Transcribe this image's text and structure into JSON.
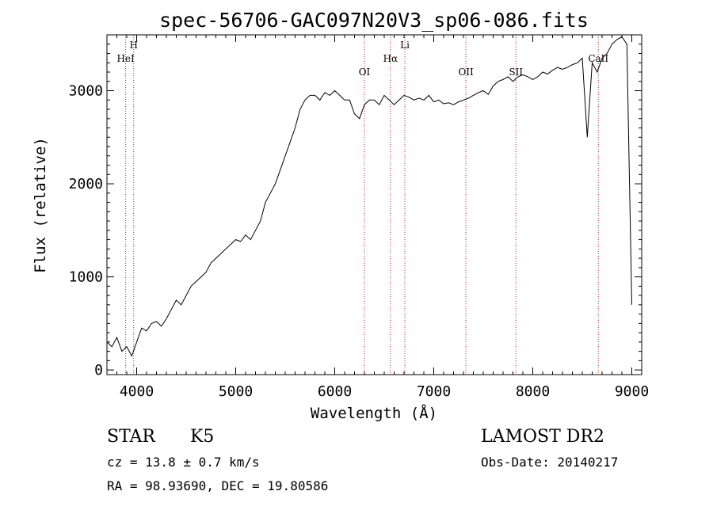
{
  "chart_data": {
    "type": "line",
    "title": "spec-56706-GAC097N20V3_sp06-086.fits",
    "xlabel": "Wavelength (Å)",
    "ylabel": "Flux (relative)",
    "xlim": [
      3700,
      9100
    ],
    "ylim": [
      -50,
      3600
    ],
    "x_ticks": [
      4000,
      5000,
      6000,
      7000,
      8000,
      9000
    ],
    "y_ticks": [
      0,
      1000,
      2000,
      3000
    ],
    "grid": false,
    "series": [
      {
        "x": [
          3700,
          3750,
          3800,
          3850,
          3900,
          3950,
          4000,
          4050,
          4100,
          4150,
          4200,
          4250,
          4300,
          4350,
          4400,
          4450,
          4500,
          4550,
          4600,
          4650,
          4700,
          4750,
          4800,
          4850,
          4900,
          4950,
          5000,
          5050,
          5100,
          5150,
          5200,
          5250,
          5300,
          5350,
          5400,
          5450,
          5500,
          5550,
          5600,
          5650,
          5700,
          5750,
          5800,
          5850,
          5900,
          5950,
          6000,
          6050,
          6100,
          6150,
          6200,
          6250,
          6300,
          6350,
          6400,
          6450,
          6500,
          6550,
          6600,
          6650,
          6700,
          6750,
          6800,
          6850,
          6900,
          6950,
          7000,
          7050,
          7100,
          7150,
          7200,
          7250,
          7300,
          7350,
          7400,
          7450,
          7500,
          7550,
          7600,
          7650,
          7700,
          7750,
          7800,
          7850,
          7900,
          7950,
          8000,
          8050,
          8100,
          8150,
          8200,
          8250,
          8300,
          8350,
          8400,
          8450,
          8500,
          8550,
          8600,
          8650,
          8700,
          8750,
          8800,
          8850,
          8900,
          8950,
          9000
        ],
        "y": [
          300,
          250,
          350,
          200,
          250,
          150,
          300,
          450,
          420,
          500,
          520,
          470,
          550,
          650,
          750,
          700,
          800,
          900,
          950,
          1000,
          1050,
          1150,
          1200,
          1250,
          1300,
          1350,
          1400,
          1380,
          1450,
          1400,
          1500,
          1600,
          1800,
          1900,
          2000,
          2150,
          2300,
          2450,
          2600,
          2800,
          2900,
          2950,
          2950,
          2900,
          2980,
          2950,
          3000,
          2950,
          2900,
          2900,
          2750,
          2700,
          2850,
          2900,
          2900,
          2850,
          2950,
          2900,
          2850,
          2900,
          2950,
          2930,
          2900,
          2920,
          2900,
          2950,
          2880,
          2900,
          2860,
          2870,
          2850,
          2880,
          2900,
          2920,
          2950,
          2980,
          3000,
          2960,
          3050,
          3100,
          3120,
          3150,
          3100,
          3150,
          3170,
          3150,
          3120,
          3150,
          3200,
          3180,
          3220,
          3250,
          3230,
          3250,
          3280,
          3300,
          3350,
          2500,
          3300,
          3200,
          3350,
          3400,
          3500,
          3550,
          3580,
          3500,
          700
        ]
      }
    ],
    "line_markers": [
      {
        "name": "HeI",
        "wavelength": 3889
      },
      {
        "name": "H",
        "wavelength": 3970
      },
      {
        "name": "OI",
        "wavelength": 6300
      },
      {
        "name": "Hα",
        "wavelength": 6563
      },
      {
        "name": "Li",
        "wavelength": 6708
      },
      {
        "name": "OII",
        "wavelength": 7325
      },
      {
        "name": "SII",
        "wavelength": 7830
      },
      {
        "name": "CaII",
        "wavelength": 8662
      }
    ],
    "marker_color": "#b22222"
  },
  "info": {
    "object_type": "STAR",
    "subclass": "K5",
    "survey": "LAMOST DR2",
    "redshift": "cz = 13.8 ± 0.7 km/s",
    "obs_date": "Obs-Date: 20140217",
    "coords": "RA =  98.93690, DEC =  19.80586"
  }
}
